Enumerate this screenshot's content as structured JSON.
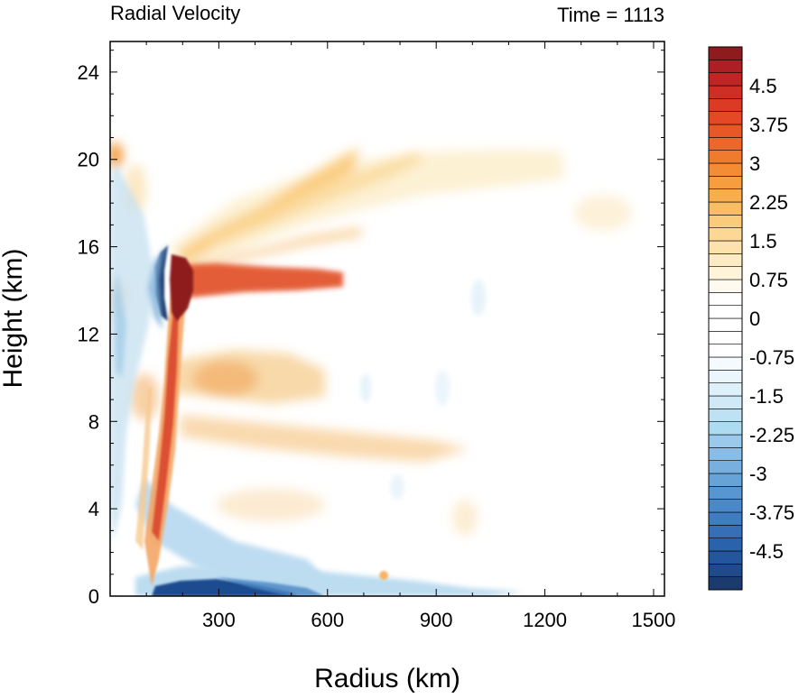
{
  "chart_data": {
    "type": "heatmap",
    "title_left": "Radial Velocity",
    "title_right": "Time = 1113",
    "xlabel": "Radius (km)",
    "ylabel": "Height (km)",
    "xlim": [
      0,
      1530
    ],
    "ylim": [
      0,
      25.4
    ],
    "x_ticks": [
      300,
      600,
      900,
      1200,
      1500
    ],
    "x_tick_labels": [
      "300",
      "600",
      "900",
      "1200",
      "1500"
    ],
    "y_ticks": [
      0,
      4,
      8,
      12,
      16,
      20,
      24
    ],
    "y_tick_labels": [
      "0",
      "4",
      "8",
      "12",
      "16",
      "20",
      "24"
    ],
    "colorbar": {
      "levels": [
        -5.25,
        -5,
        -4.75,
        -4.5,
        -4.25,
        -4,
        -3.75,
        -3.5,
        -3.25,
        -3,
        -2.75,
        -2.5,
        -2.25,
        -2,
        -1.75,
        -1.5,
        -1.25,
        -1,
        -0.75,
        -0.5,
        -0.25,
        0,
        0.25,
        0.5,
        0.75,
        1,
        1.25,
        1.5,
        1.75,
        2,
        2.25,
        2.5,
        2.75,
        3,
        3.25,
        3.5,
        3.75,
        4,
        4.25,
        4.5,
        4.75,
        5,
        5.25
      ],
      "labels": [
        "4.5",
        "3.75",
        "3",
        "2.25",
        "1.5",
        "0.75",
        "0",
        "-0.75",
        "-1.5",
        "-2.25",
        "-3",
        "-3.75",
        "-4.5"
      ],
      "label_values": [
        4.5,
        3.75,
        3,
        2.25,
        1.5,
        0.75,
        0,
        -0.75,
        -1.5,
        -2.25,
        -3,
        -3.75,
        -4.5
      ],
      "neg_extreme_color": "#1b3a6e",
      "pos_extreme_color": "#8e1b1e"
    },
    "features": [
      {
        "desc": "outflow layer",
        "radius_range": [
          80,
          1250
        ],
        "height_range": [
          17,
          20.5
        ],
        "velocity_max": 2.25
      },
      {
        "desc": "strong outflow core",
        "radius": 190,
        "height_range": [
          13,
          15.8
        ],
        "velocity": 5
      },
      {
        "desc": "strong inflow core",
        "radius": 150,
        "height_range": [
          13,
          16
        ],
        "velocity": -5
      },
      {
        "desc": "boundary layer inflow",
        "radius_range": [
          120,
          500
        ],
        "height_range": [
          0,
          1.5
        ],
        "velocity_min": -5
      },
      {
        "desc": "eyewall outflow band",
        "radius_range": [
          140,
          190
        ],
        "height_range": [
          1,
          13
        ],
        "velocity_max": 4
      }
    ]
  }
}
